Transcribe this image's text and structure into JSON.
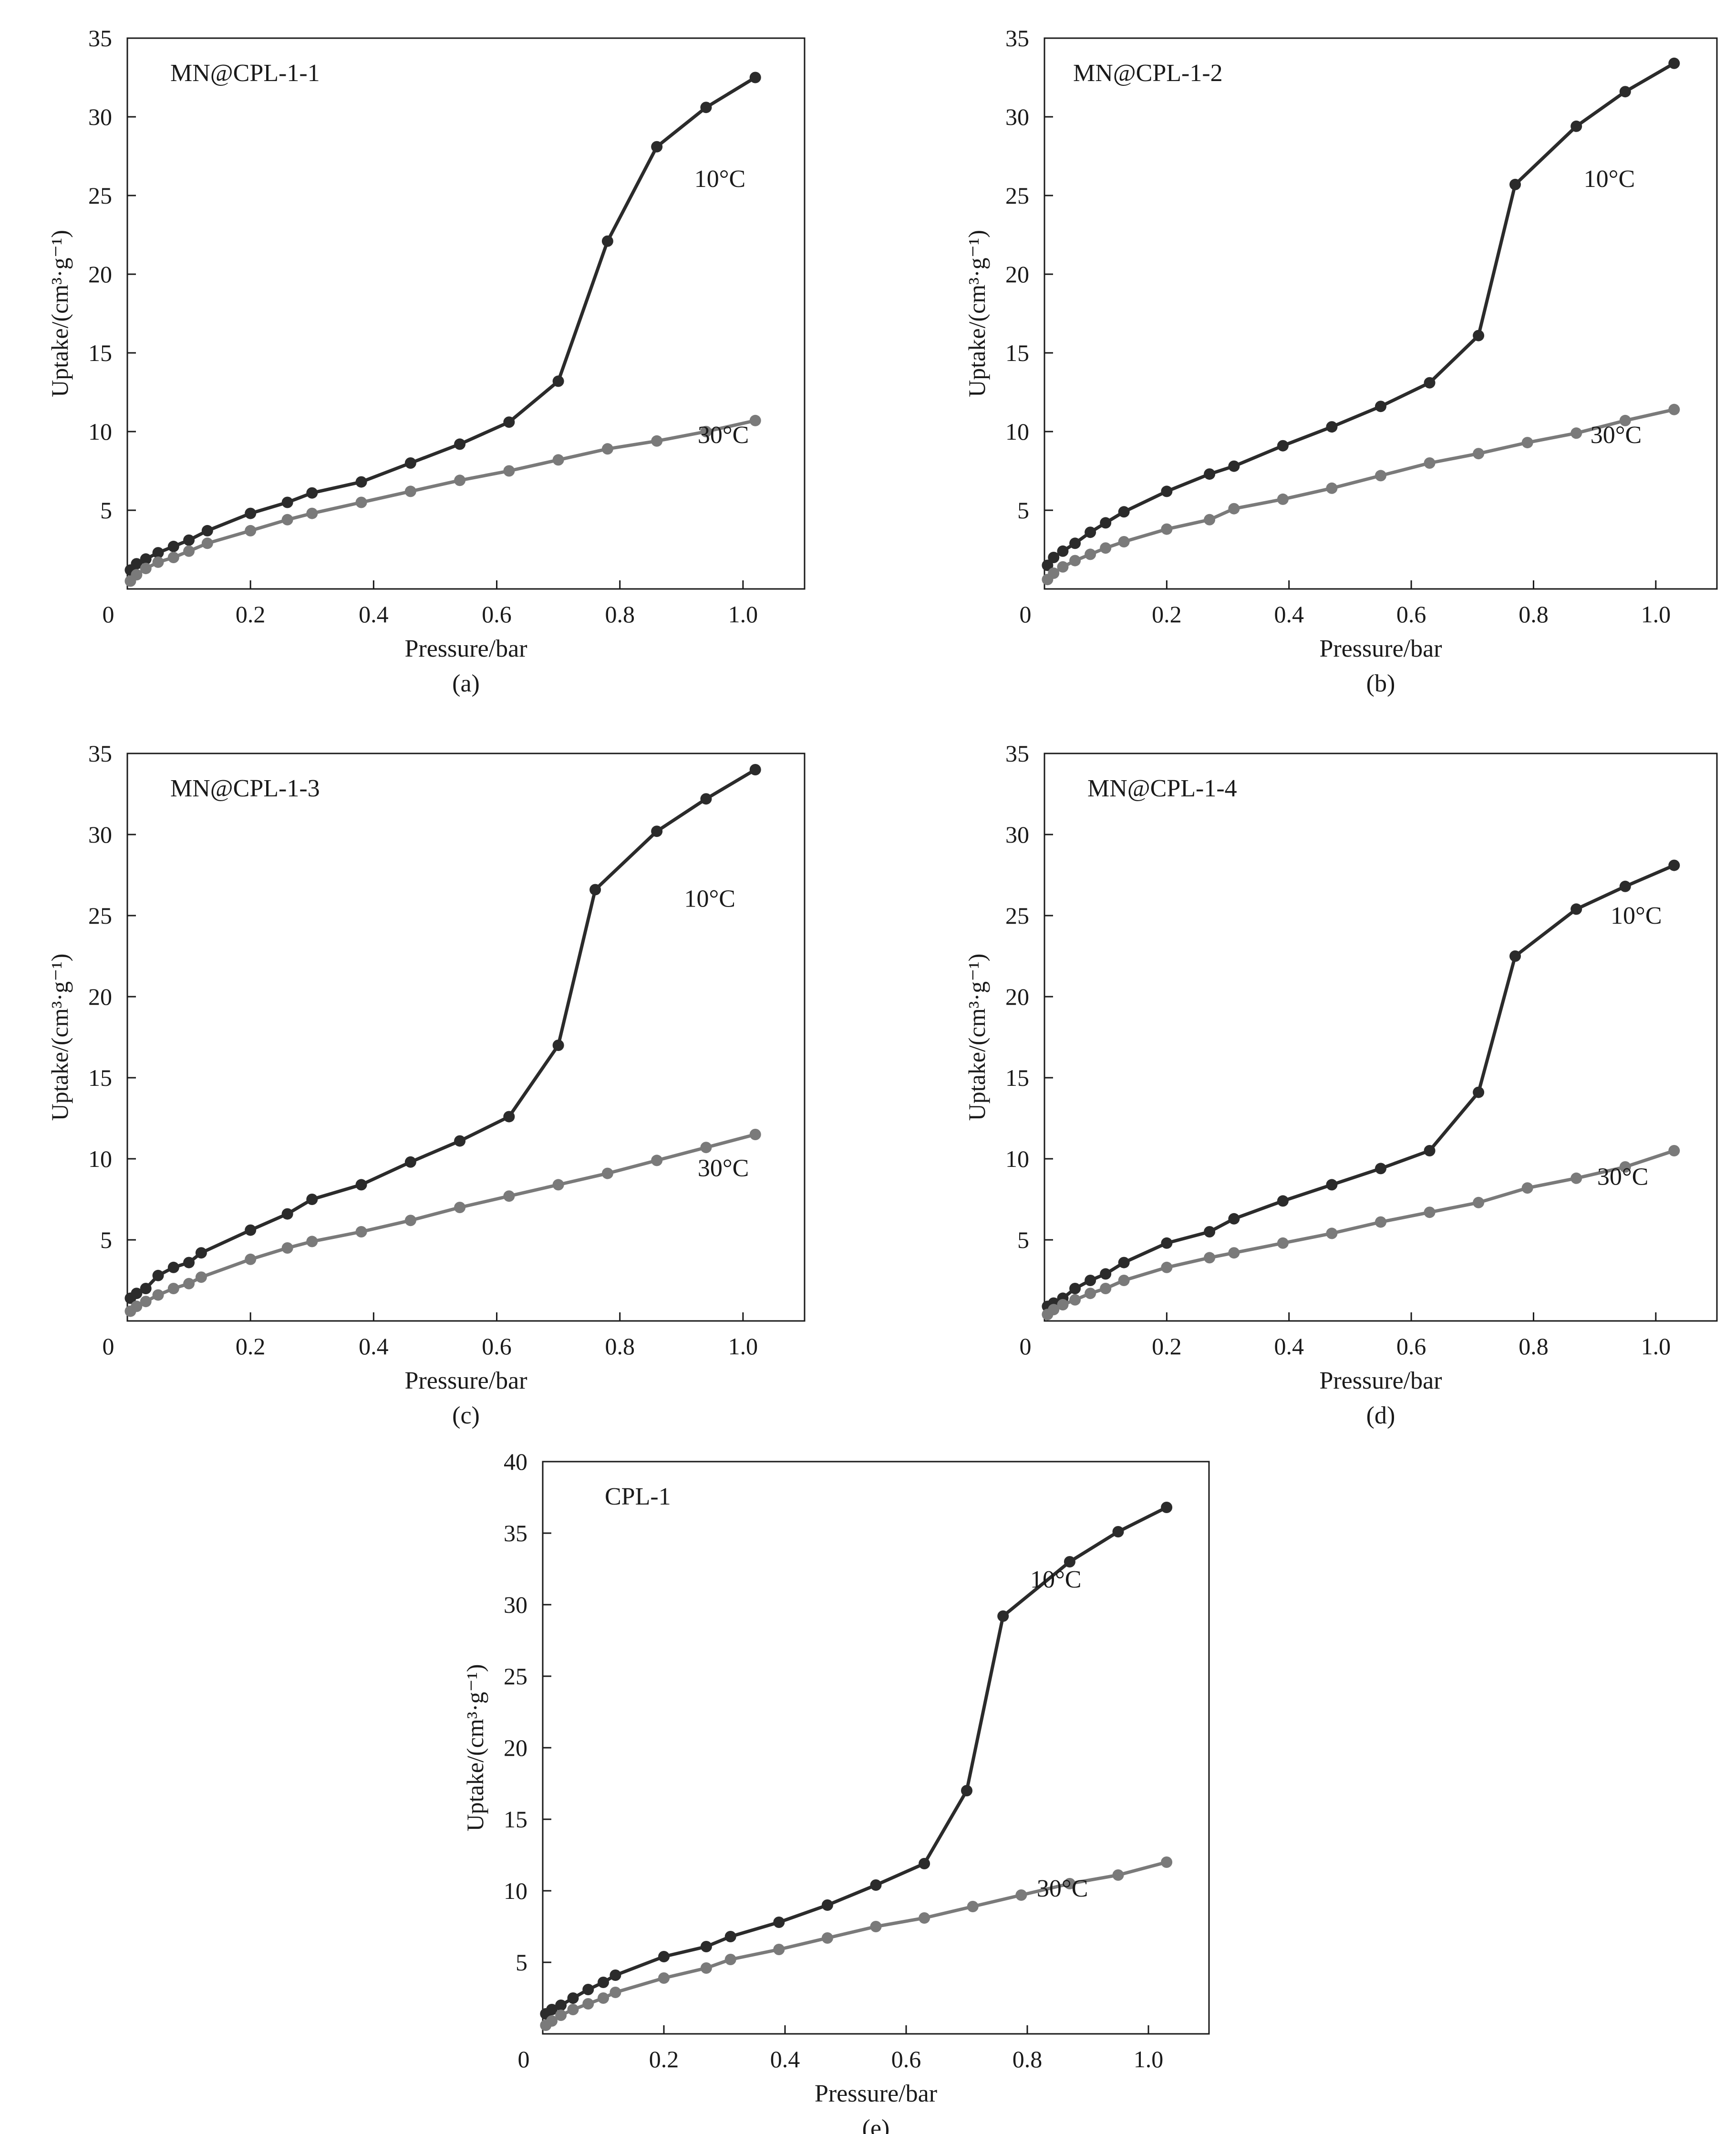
{
  "chart_data": [
    {
      "id": "a",
      "type": "line",
      "panel_label": "(a)",
      "sample_label": "MN@CPL-1-1",
      "xlabel": "Pressure/bar",
      "ylabel": "Uptake/(cm³·g⁻¹)",
      "xlim": [
        0,
        1.1
      ],
      "ylim": [
        0,
        35
      ],
      "xticks": [
        0,
        0.2,
        0.4,
        0.6,
        0.8,
        1.0
      ],
      "xtick_labels": [
        "0",
        "0.2",
        "0.4",
        "0.6",
        "0.8",
        "1.0"
      ],
      "yticks": [
        5,
        10,
        15,
        20,
        25,
        30,
        35
      ],
      "ytick_labels": [
        "5",
        "10",
        "15",
        "20",
        "25",
        "30",
        "35"
      ],
      "series": [
        {
          "name": "10°C",
          "color": "#2b2b2b",
          "x": [
            0.005,
            0.015,
            0.03,
            0.05,
            0.075,
            0.1,
            0.13,
            0.2,
            0.26,
            0.3,
            0.38,
            0.46,
            0.54,
            0.62,
            0.7,
            0.78,
            0.86,
            0.94,
            1.02
          ],
          "y": [
            1.2,
            1.6,
            1.9,
            2.3,
            2.7,
            3.1,
            3.7,
            4.8,
            5.5,
            6.1,
            6.8,
            8.0,
            9.2,
            10.6,
            13.2,
            22.1,
            28.1,
            30.6,
            32.5
          ]
        },
        {
          "name": "30°C",
          "color": "#7a7a7a",
          "x": [
            0.005,
            0.015,
            0.03,
            0.05,
            0.075,
            0.1,
            0.13,
            0.2,
            0.26,
            0.3,
            0.38,
            0.46,
            0.54,
            0.62,
            0.7,
            0.78,
            0.86,
            0.94,
            1.02
          ],
          "y": [
            0.5,
            0.9,
            1.3,
            1.7,
            2.0,
            2.4,
            2.9,
            3.7,
            4.4,
            4.8,
            5.5,
            6.2,
            6.9,
            7.5,
            8.2,
            8.9,
            9.4,
            10.0,
            10.7
          ]
        }
      ]
    },
    {
      "id": "b",
      "type": "line",
      "panel_label": "(b)",
      "sample_label": "MN@CPL-1-2",
      "xlabel": "Pressure/bar",
      "ylabel": "Uptake/(cm³·g⁻¹)",
      "xlim": [
        0,
        1.1
      ],
      "ylim": [
        0,
        35
      ],
      "xticks": [
        0,
        0.2,
        0.4,
        0.6,
        0.8,
        1.0
      ],
      "xtick_labels": [
        "0",
        "0.2",
        "0.4",
        "0.6",
        "0.8",
        "1.0"
      ],
      "yticks": [
        5,
        10,
        15,
        20,
        25,
        30,
        35
      ],
      "ytick_labels": [
        "5",
        "10",
        "15",
        "20",
        "25",
        "30",
        "35"
      ],
      "series": [
        {
          "name": "10°C",
          "color": "#2b2b2b",
          "x": [
            0.005,
            0.015,
            0.03,
            0.05,
            0.075,
            0.1,
            0.13,
            0.2,
            0.27,
            0.31,
            0.39,
            0.47,
            0.55,
            0.63,
            0.71,
            0.77,
            0.87,
            0.95,
            1.03
          ],
          "y": [
            1.5,
            2.0,
            2.4,
            2.9,
            3.6,
            4.2,
            4.9,
            6.2,
            7.3,
            7.8,
            9.1,
            10.3,
            11.6,
            13.1,
            16.1,
            25.7,
            29.4,
            31.6,
            33.4
          ]
        },
        {
          "name": "30°C",
          "color": "#7a7a7a",
          "x": [
            0.005,
            0.015,
            0.03,
            0.05,
            0.075,
            0.1,
            0.13,
            0.2,
            0.27,
            0.31,
            0.39,
            0.47,
            0.55,
            0.63,
            0.71,
            0.79,
            0.87,
            0.95,
            1.03
          ],
          "y": [
            0.6,
            1.0,
            1.4,
            1.8,
            2.2,
            2.6,
            3.0,
            3.8,
            4.4,
            5.1,
            5.7,
            6.4,
            7.2,
            8.0,
            8.6,
            9.3,
            9.9,
            10.7,
            11.4
          ]
        }
      ]
    },
    {
      "id": "c",
      "type": "line",
      "panel_label": "(c)",
      "sample_label": "MN@CPL-1-3",
      "xlabel": "Pressure/bar",
      "ylabel": "Uptake/(cm³·g⁻¹)",
      "xlim": [
        0,
        1.1
      ],
      "ylim": [
        0,
        35
      ],
      "xticks": [
        0,
        0.2,
        0.4,
        0.6,
        0.8,
        1.0
      ],
      "xtick_labels": [
        "0",
        "0.2",
        "0.4",
        "0.6",
        "0.8",
        "1.0"
      ],
      "yticks": [
        5,
        10,
        15,
        20,
        25,
        30,
        35
      ],
      "ytick_labels": [
        "5",
        "10",
        "15",
        "20",
        "25",
        "30",
        "35"
      ],
      "series": [
        {
          "name": "10°C",
          "color": "#2b2b2b",
          "x": [
            0.005,
            0.015,
            0.03,
            0.05,
            0.075,
            0.1,
            0.12,
            0.2,
            0.26,
            0.3,
            0.38,
            0.46,
            0.54,
            0.62,
            0.7,
            0.76,
            0.86,
            0.94,
            1.02
          ],
          "y": [
            1.4,
            1.7,
            2.0,
            2.8,
            3.3,
            3.6,
            4.2,
            5.6,
            6.6,
            7.5,
            8.4,
            9.8,
            11.1,
            12.6,
            17.0,
            26.6,
            30.2,
            32.2,
            34.0
          ]
        },
        {
          "name": "30°C",
          "color": "#7a7a7a",
          "x": [
            0.005,
            0.015,
            0.03,
            0.05,
            0.075,
            0.1,
            0.12,
            0.2,
            0.26,
            0.3,
            0.38,
            0.46,
            0.54,
            0.62,
            0.7,
            0.78,
            0.86,
            0.94,
            1.02
          ],
          "y": [
            0.6,
            0.9,
            1.2,
            1.6,
            2.0,
            2.3,
            2.7,
            3.8,
            4.5,
            4.9,
            5.5,
            6.2,
            7.0,
            7.7,
            8.4,
            9.1,
            9.9,
            10.7,
            11.5
          ]
        }
      ]
    },
    {
      "id": "d",
      "type": "line",
      "panel_label": "(d)",
      "sample_label": "MN@CPL-1-4",
      "xlabel": "Pressure/bar",
      "ylabel": "Uptake/(cm³·g⁻¹)",
      "xlim": [
        0,
        1.1
      ],
      "ylim": [
        0,
        35
      ],
      "xticks": [
        0,
        0.2,
        0.4,
        0.6,
        0.8,
        1.0
      ],
      "xtick_labels": [
        "0",
        "0.2",
        "0.4",
        "0.6",
        "0.8",
        "1.0"
      ],
      "yticks": [
        5,
        10,
        15,
        20,
        25,
        30,
        35
      ],
      "ytick_labels": [
        "5",
        "10",
        "15",
        "20",
        "25",
        "30",
        "35"
      ],
      "series": [
        {
          "name": "10°C",
          "color": "#2b2b2b",
          "x": [
            0.005,
            0.015,
            0.03,
            0.05,
            0.075,
            0.1,
            0.13,
            0.2,
            0.27,
            0.31,
            0.39,
            0.47,
            0.55,
            0.63,
            0.71,
            0.77,
            0.87,
            0.95,
            1.03
          ],
          "y": [
            0.9,
            1.1,
            1.4,
            2.0,
            2.5,
            2.9,
            3.6,
            4.8,
            5.5,
            6.3,
            7.4,
            8.4,
            9.4,
            10.5,
            14.1,
            22.5,
            25.4,
            26.8,
            28.1
          ]
        },
        {
          "name": "30°C",
          "color": "#7a7a7a",
          "x": [
            0.005,
            0.015,
            0.03,
            0.05,
            0.075,
            0.1,
            0.13,
            0.2,
            0.27,
            0.31,
            0.39,
            0.47,
            0.55,
            0.63,
            0.71,
            0.79,
            0.87,
            0.95,
            1.03
          ],
          "y": [
            0.4,
            0.7,
            1.0,
            1.3,
            1.7,
            2.0,
            2.5,
            3.3,
            3.9,
            4.2,
            4.8,
            5.4,
            6.1,
            6.7,
            7.3,
            8.2,
            8.8,
            9.5,
            10.5
          ]
        }
      ]
    },
    {
      "id": "e",
      "type": "line",
      "panel_label": "(e)",
      "sample_label": "CPL-1",
      "xlabel": "Pressure/bar",
      "ylabel": "Uptake/(cm³·g⁻¹)",
      "xlim": [
        0,
        1.1
      ],
      "ylim": [
        0,
        40
      ],
      "xticks": [
        0,
        0.2,
        0.4,
        0.6,
        0.8,
        1.0
      ],
      "xtick_labels": [
        "0",
        "0.2",
        "0.4",
        "0.6",
        "0.8",
        "1.0"
      ],
      "yticks": [
        5,
        10,
        15,
        20,
        25,
        30,
        35,
        40
      ],
      "ytick_labels": [
        "5",
        "10",
        "15",
        "20",
        "25",
        "30",
        "35",
        "40"
      ],
      "series": [
        {
          "name": "10°C",
          "color": "#2b2b2b",
          "x": [
            0.005,
            0.015,
            0.03,
            0.05,
            0.075,
            0.1,
            0.12,
            0.2,
            0.27,
            0.31,
            0.39,
            0.47,
            0.55,
            0.63,
            0.7,
            0.76,
            0.87,
            0.95,
            1.03
          ],
          "y": [
            1.4,
            1.7,
            2.0,
            2.5,
            3.1,
            3.6,
            4.1,
            5.4,
            6.1,
            6.8,
            7.8,
            9.0,
            10.4,
            11.9,
            17.0,
            29.2,
            33.0,
            35.1,
            36.8
          ]
        },
        {
          "name": "30°C",
          "color": "#7a7a7a",
          "x": [
            0.005,
            0.015,
            0.03,
            0.05,
            0.075,
            0.1,
            0.12,
            0.2,
            0.27,
            0.31,
            0.39,
            0.47,
            0.55,
            0.63,
            0.71,
            0.79,
            0.87,
            0.95,
            1.03
          ],
          "y": [
            0.6,
            0.9,
            1.3,
            1.7,
            2.1,
            2.5,
            2.9,
            3.9,
            4.6,
            5.2,
            5.9,
            6.7,
            7.5,
            8.1,
            8.9,
            9.7,
            10.5,
            11.1,
            12.0
          ]
        }
      ]
    }
  ]
}
